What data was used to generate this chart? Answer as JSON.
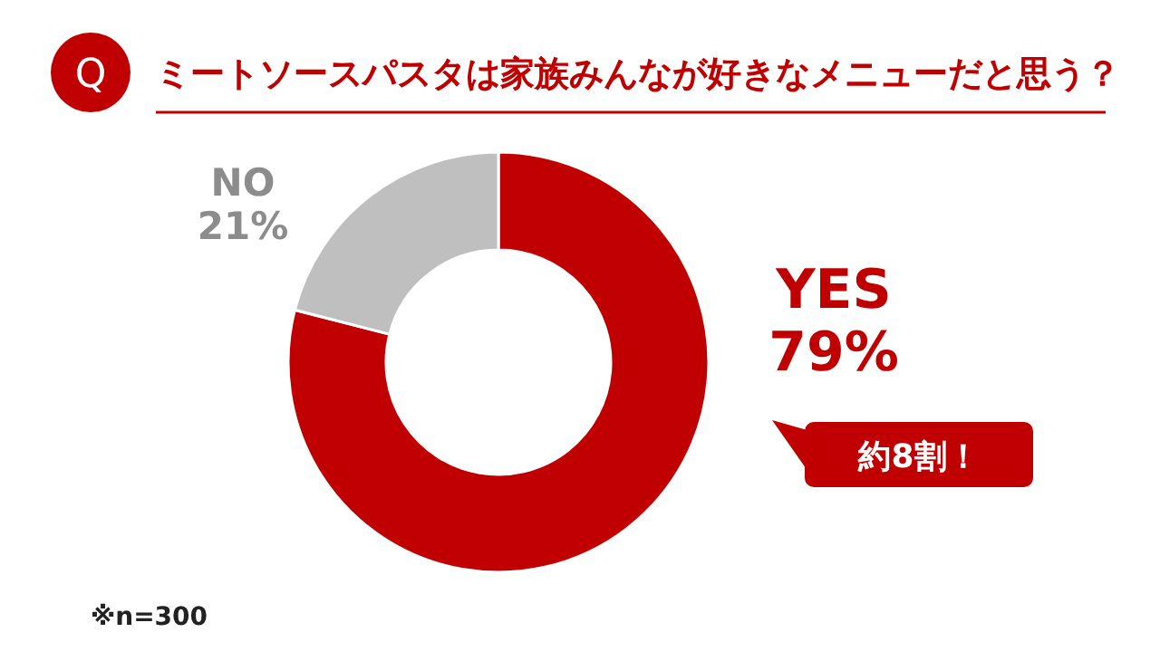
{
  "chart_data": {
    "type": "donut",
    "title": "ミートソースパスタは家族みんなが好きなメニューだと思う？",
    "categories": [
      "YES",
      "NO"
    ],
    "values": [
      79,
      21
    ],
    "value_labels": [
      "79%",
      "21%"
    ],
    "colors": [
      "#c00000",
      "#bfbfbf"
    ],
    "annotations": [
      "Q",
      "約8割！",
      "※n=300"
    ]
  }
}
